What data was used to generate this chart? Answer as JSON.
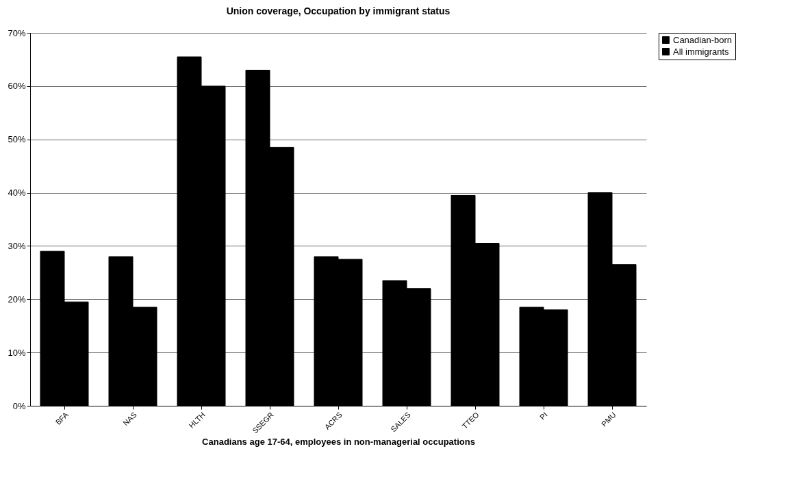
{
  "chart_data": {
    "type": "bar",
    "title": "Union coverage, Occupation by immigrant status",
    "xlabel": "Canadians age 17-64, employees in non-managerial occupations",
    "categories": [
      "BFA",
      "NAS",
      "HLTH",
      "SSEGR",
      "ACRS",
      "SALES",
      "TTEO",
      "PI",
      "PMU"
    ],
    "series": [
      {
        "name": "Canadian-born",
        "color": "#000000",
        "values": [
          29,
          28,
          65.5,
          63,
          28,
          23.5,
          39.5,
          18.5,
          40
        ]
      },
      {
        "name": "All immigrants",
        "color": "#000000",
        "values": [
          19.5,
          18.5,
          60,
          48.5,
          27.5,
          22,
          30.5,
          18,
          26.5
        ]
      }
    ],
    "ylim": [
      0,
      70
    ],
    "yticks": [
      {
        "value": 0,
        "label": "0%"
      },
      {
        "value": 10,
        "label": "10%"
      },
      {
        "value": 20,
        "label": "20%"
      },
      {
        "value": 30,
        "label": "30%"
      },
      {
        "value": 40,
        "label": "40%"
      },
      {
        "value": 50,
        "label": "50%"
      },
      {
        "value": 60,
        "label": "60%"
      },
      {
        "value": 70,
        "label": "70%"
      }
    ],
    "grid": "y",
    "legend": "right"
  }
}
